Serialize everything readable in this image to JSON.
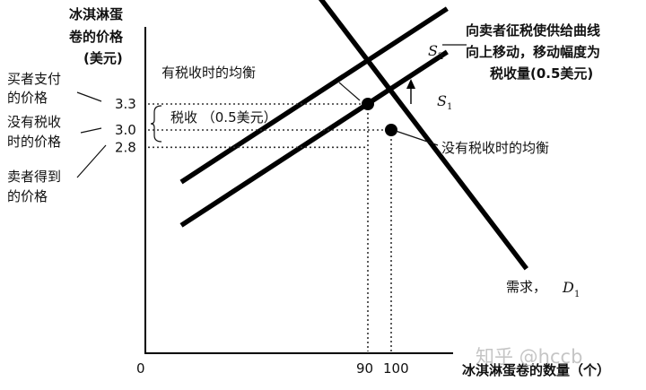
{
  "chart_data": {
    "type": "line",
    "title": "",
    "ylabel": [
      "冰淇淋蛋",
      "卷的价格",
      "(美元)"
    ],
    "xlabel": "冰淇淋蛋卷的数量（个）",
    "origin_label": "0",
    "x_ticks": [
      {
        "value": 90,
        "label": "90"
      },
      {
        "value": 100,
        "label": "100"
      }
    ],
    "y_ticks": [
      {
        "value": 3.3,
        "label": "3.3"
      },
      {
        "value": 3.0,
        "label": "3.0"
      },
      {
        "value": 2.8,
        "label": "2.8"
      }
    ],
    "series": [
      {
        "name": "S",
        "subscript": "2",
        "points": [
          [
            10,
            2.4
          ],
          [
            124,
            4.4
          ]
        ]
      },
      {
        "name": "S",
        "subscript": "1",
        "points": [
          [
            10,
            1.9
          ],
          [
            124,
            3.9
          ]
        ]
      },
      {
        "name": "D",
        "subscript": "1",
        "points": [
          [
            56,
            5.0
          ],
          [
            158,
            1.4
          ]
        ]
      }
    ],
    "equilibria": [
      {
        "label": "有税收时的均衡",
        "x": 90,
        "y": 3.3
      },
      {
        "label": "没有税收时的均衡",
        "x": 100,
        "y": 3.0
      }
    ],
    "annotations": {
      "buyer_price": [
        "买者支付",
        "的价格"
      ],
      "no_tax_price": [
        "没有税收",
        "时的价格"
      ],
      "seller_price": [
        "卖者得到",
        "的价格"
      ],
      "tax": "税收 （0.5美元）",
      "shift_note": [
        "向卖者征税使供给曲线",
        "向上移动，移动幅度为",
        "税收量(0.5美元)"
      ],
      "demand": "需求，"
    },
    "watermark": "知乎 @hccb"
  }
}
